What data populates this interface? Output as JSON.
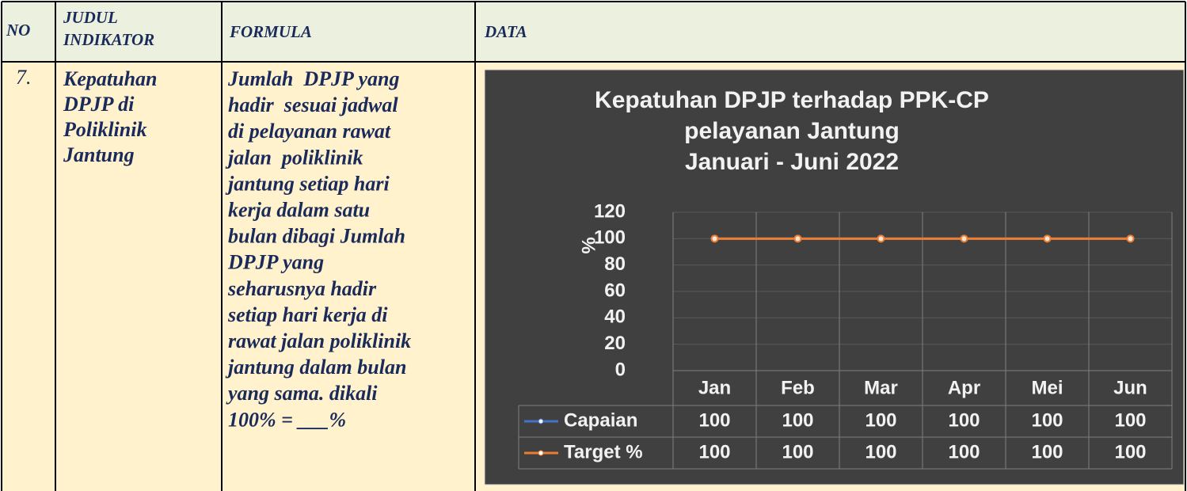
{
  "table": {
    "header": [
      "NO",
      [
        "JUDUL",
        "INDIKATOR"
      ],
      "FORMULA",
      "DATA"
    ],
    "rows": [
      {
        "no": "7.",
        "title": [
          "Kepatuhan",
          "DPJP di",
          "Poliklinik",
          "Jantung"
        ],
        "formula": [
          "Jumlah  DPJP yang",
          "hadir  sesuai jadwal",
          "di pelayanan rawat",
          "jalan  poliklinik",
          "jantung setiap hari",
          "kerja dalam satu",
          "bulan dibagi Jumlah",
          "DPJP yang",
          "seharusnya hadir",
          "setiap hari kerja di",
          "rawat jalan poliklinik",
          "jantung dalam bulan",
          "yang sama. dikali",
          "100% = ___%"
        ]
      }
    ]
  },
  "chart_data": {
    "type": "line",
    "title": [
      "Kepatuhan DPJP terhadap PPK-CP",
      "pelayanan Jantung",
      "Januari - Juni 2022"
    ],
    "y_label": "%",
    "categories": [
      "Jan",
      "Feb",
      "Mar",
      "Apr",
      "Mei",
      "Jun"
    ],
    "series": [
      {
        "name": "Capaian",
        "color": "#4472c4",
        "values": [
          100,
          100,
          100,
          100,
          100,
          100
        ]
      },
      {
        "name": "Target %",
        "color": "#ed7d31",
        "values": [
          100,
          100,
          100,
          100,
          100,
          100
        ]
      }
    ],
    "ylim": [
      0,
      120
    ],
    "yticks": [
      0,
      20,
      40,
      60,
      80,
      100,
      120
    ],
    "grid": true,
    "data_table": true
  }
}
